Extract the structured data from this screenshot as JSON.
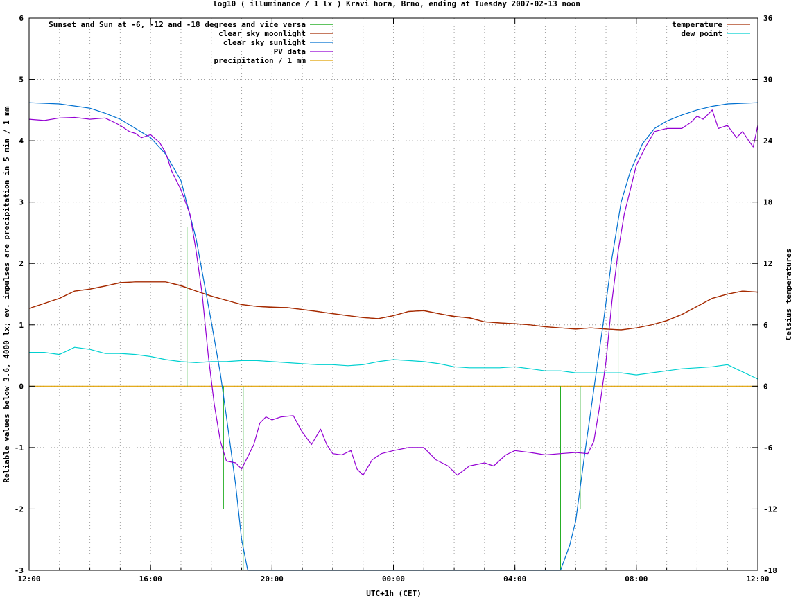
{
  "chart_data": {
    "type": "line",
    "title": "log10 ( illuminance / 1 lx ) Kravi hora, Brno, ending at Tuesday 2007-02-13 noon",
    "xlabel": "UTC+1h (CET)",
    "ylabel": "Reliable values below 3.6, 4000 lx; ev. impulses are precipitation in 5 min / 1 mm",
    "y2label": "Celsius temperatures",
    "x_unit": "hours elapsed since Monday 2007-02-12 12:00 (CET)",
    "xlim": [
      0,
      24
    ],
    "ylim": [
      -3,
      6
    ],
    "y2lim": [
      -18,
      36
    ],
    "grid": true,
    "legend_left_position": "top-left",
    "legend_right_position": "top-right",
    "x_ticks": [
      {
        "x": 0,
        "label": "12:00"
      },
      {
        "x": 4,
        "label": "16:00"
      },
      {
        "x": 8,
        "label": "20:00"
      },
      {
        "x": 12,
        "label": "00:00"
      },
      {
        "x": 16,
        "label": "04:00"
      },
      {
        "x": 20,
        "label": "08:00"
      },
      {
        "x": 24,
        "label": "12:00"
      }
    ],
    "y_ticks": [
      "-3",
      "-2",
      "-1",
      "0",
      "1",
      "2",
      "3",
      "4",
      "5",
      "6"
    ],
    "y2_ticks": [
      "-18",
      "-12",
      "-6",
      "0",
      "6",
      "12",
      "18",
      "24",
      "30",
      "36"
    ],
    "series": [
      {
        "name": "Sunset and Sun at -6, -12 and -18 degrees and vice versa",
        "axis": "y",
        "color": "#00a000",
        "kind": "impulse",
        "impulses": [
          {
            "x": 5.2,
            "y": 2.6
          },
          {
            "x": 6.4,
            "y": -2.0
          },
          {
            "x": 7.05,
            "y": -3.0
          },
          {
            "x": 17.5,
            "y": -3.0
          },
          {
            "x": 18.15,
            "y": -2.0
          },
          {
            "x": 19.4,
            "y": 2.6
          }
        ]
      },
      {
        "name": "clear sky moonlight",
        "axis": "y",
        "color": "#a52a00",
        "points": [
          [
            0,
            1.27
          ],
          [
            0.5,
            1.35
          ],
          [
            1,
            1.43
          ],
          [
            1.5,
            1.55
          ],
          [
            2,
            1.58
          ],
          [
            2.5,
            1.63
          ],
          [
            3,
            1.69
          ],
          [
            3.5,
            1.7
          ],
          [
            4,
            1.7
          ],
          [
            4.5,
            1.7
          ],
          [
            5,
            1.64
          ],
          [
            5.5,
            1.55
          ],
          [
            6,
            1.47
          ],
          [
            6.5,
            1.4
          ],
          [
            7,
            1.33
          ],
          [
            7.5,
            1.3
          ],
          [
            8,
            1.29
          ],
          [
            8.5,
            1.28
          ],
          [
            9,
            1.25
          ],
          [
            9.5,
            1.22
          ],
          [
            10,
            1.18
          ],
          [
            10.5,
            1.15
          ],
          [
            11,
            1.12
          ],
          [
            11.5,
            1.1
          ],
          [
            12,
            1.15
          ],
          [
            12.5,
            1.22
          ],
          [
            13,
            1.23
          ],
          [
            13.5,
            1.18
          ],
          [
            14,
            1.14
          ],
          [
            14.5,
            1.11
          ],
          [
            15,
            1.05
          ],
          [
            15.5,
            1.03
          ],
          [
            16,
            1.02
          ],
          [
            16.5,
            1.0
          ],
          [
            17,
            0.97
          ],
          [
            17.5,
            0.95
          ],
          [
            18,
            0.93
          ],
          [
            18.5,
            0.95
          ],
          [
            19,
            0.93
          ],
          [
            19.5,
            0.92
          ],
          [
            20,
            0.95
          ],
          [
            20.5,
            1.0
          ],
          [
            21,
            1.07
          ],
          [
            21.5,
            1.17
          ],
          [
            22,
            1.3
          ],
          [
            22.5,
            1.43
          ],
          [
            23,
            1.5
          ],
          [
            23.5,
            1.55
          ],
          [
            24,
            1.53
          ]
        ]
      },
      {
        "name": "clear sky sunlight",
        "axis": "y",
        "color": "#0070d0",
        "points": [
          [
            0,
            4.62
          ],
          [
            1,
            4.6
          ],
          [
            2,
            4.53
          ],
          [
            2.5,
            4.45
          ],
          [
            3,
            4.35
          ],
          [
            3.5,
            4.2
          ],
          [
            4,
            4.05
          ],
          [
            4.5,
            3.78
          ],
          [
            5,
            3.35
          ],
          [
            5.5,
            2.4
          ],
          [
            6,
            1.05
          ],
          [
            6.3,
            0.2
          ],
          [
            6.5,
            -0.5
          ],
          [
            6.8,
            -1.6
          ],
          [
            7.0,
            -2.5
          ],
          [
            7.2,
            -3.0
          ],
          [
            17.5,
            -3.0
          ],
          [
            17.8,
            -2.6
          ],
          [
            18.0,
            -2.2
          ],
          [
            18.3,
            -1.1
          ],
          [
            18.6,
            -0.05
          ],
          [
            18.9,
            1.0
          ],
          [
            19.2,
            2.1
          ],
          [
            19.5,
            3.0
          ],
          [
            19.8,
            3.5
          ],
          [
            20.2,
            3.95
          ],
          [
            20.6,
            4.2
          ],
          [
            21,
            4.32
          ],
          [
            21.5,
            4.42
          ],
          [
            22,
            4.5
          ],
          [
            22.5,
            4.56
          ],
          [
            23,
            4.6
          ],
          [
            24,
            4.62
          ]
        ]
      },
      {
        "name": "PV data",
        "axis": "y",
        "color": "#9400d3",
        "points": [
          [
            0,
            4.35
          ],
          [
            0.5,
            4.33
          ],
          [
            1,
            4.37
          ],
          [
            1.5,
            4.38
          ],
          [
            2,
            4.35
          ],
          [
            2.5,
            4.37
          ],
          [
            2.8,
            4.3
          ],
          [
            3,
            4.25
          ],
          [
            3.3,
            4.15
          ],
          [
            3.5,
            4.12
          ],
          [
            3.7,
            4.05
          ],
          [
            4,
            4.1
          ],
          [
            4.3,
            3.97
          ],
          [
            4.5,
            3.8
          ],
          [
            4.7,
            3.5
          ],
          [
            5,
            3.2
          ],
          [
            5.3,
            2.8
          ],
          [
            5.5,
            2.2
          ],
          [
            5.7,
            1.5
          ],
          [
            5.9,
            0.5
          ],
          [
            6.1,
            -0.3
          ],
          [
            6.3,
            -0.9
          ],
          [
            6.5,
            -1.22
          ],
          [
            6.8,
            -1.25
          ],
          [
            7,
            -1.35
          ],
          [
            7.2,
            -1.15
          ],
          [
            7.4,
            -0.95
          ],
          [
            7.6,
            -0.6
          ],
          [
            7.8,
            -0.5
          ],
          [
            8,
            -0.55
          ],
          [
            8.3,
            -0.5
          ],
          [
            8.7,
            -0.48
          ],
          [
            9,
            -0.75
          ],
          [
            9.3,
            -0.95
          ],
          [
            9.6,
            -0.7
          ],
          [
            9.8,
            -0.95
          ],
          [
            10,
            -1.1
          ],
          [
            10.3,
            -1.12
          ],
          [
            10.6,
            -1.05
          ],
          [
            10.8,
            -1.35
          ],
          [
            11,
            -1.45
          ],
          [
            11.3,
            -1.2
          ],
          [
            11.6,
            -1.1
          ],
          [
            12,
            -1.05
          ],
          [
            12.5,
            -1.0
          ],
          [
            13,
            -1.0
          ],
          [
            13.4,
            -1.2
          ],
          [
            13.8,
            -1.3
          ],
          [
            14.1,
            -1.45
          ],
          [
            14.5,
            -1.3
          ],
          [
            15,
            -1.25
          ],
          [
            15.3,
            -1.3
          ],
          [
            15.7,
            -1.12
          ],
          [
            16,
            -1.05
          ],
          [
            16.5,
            -1.08
          ],
          [
            17,
            -1.12
          ],
          [
            17.5,
            -1.1
          ],
          [
            18,
            -1.08
          ],
          [
            18.4,
            -1.1
          ],
          [
            18.6,
            -0.9
          ],
          [
            18.8,
            -0.3
          ],
          [
            19,
            0.4
          ],
          [
            19.2,
            1.4
          ],
          [
            19.4,
            2.2
          ],
          [
            19.6,
            2.8
          ],
          [
            19.8,
            3.2
          ],
          [
            20,
            3.6
          ],
          [
            20.3,
            3.9
          ],
          [
            20.6,
            4.15
          ],
          [
            21,
            4.2
          ],
          [
            21.5,
            4.2
          ],
          [
            21.8,
            4.3
          ],
          [
            22,
            4.4
          ],
          [
            22.2,
            4.35
          ],
          [
            22.5,
            4.5
          ],
          [
            22.7,
            4.2
          ],
          [
            23,
            4.25
          ],
          [
            23.3,
            4.05
          ],
          [
            23.5,
            4.15
          ],
          [
            23.7,
            4.0
          ],
          [
            23.85,
            3.9
          ],
          [
            24,
            4.25
          ]
        ]
      },
      {
        "name": "precipitation / 1 mm",
        "axis": "y",
        "color": "#e0a000",
        "points": [
          [
            0,
            0
          ],
          [
            24,
            0
          ]
        ]
      },
      {
        "name": "temperature",
        "axis": "y2",
        "color": "#a52a00",
        "points": [
          [
            0,
            7.6
          ],
          [
            0.5,
            8.1
          ],
          [
            1,
            8.6
          ],
          [
            1.5,
            9.3
          ],
          [
            2,
            9.5
          ],
          [
            2.5,
            9.8
          ],
          [
            3,
            10.1
          ],
          [
            3.5,
            10.2
          ],
          [
            4,
            10.2
          ],
          [
            4.5,
            10.2
          ],
          [
            5,
            9.8
          ],
          [
            5.5,
            9.3
          ],
          [
            6,
            8.8
          ],
          [
            6.5,
            8.4
          ],
          [
            7,
            8.0
          ],
          [
            7.5,
            7.8
          ],
          [
            8,
            7.7
          ],
          [
            8.5,
            7.7
          ],
          [
            9,
            7.5
          ],
          [
            9.5,
            7.3
          ],
          [
            10,
            7.1
          ],
          [
            10.5,
            6.9
          ],
          [
            11,
            6.7
          ],
          [
            11.5,
            6.6
          ],
          [
            12,
            6.9
          ],
          [
            12.5,
            7.3
          ],
          [
            13,
            7.4
          ],
          [
            13.5,
            7.1
          ],
          [
            14,
            6.8
          ],
          [
            14.5,
            6.7
          ],
          [
            15,
            6.3
          ],
          [
            15.5,
            6.2
          ],
          [
            16,
            6.1
          ],
          [
            16.5,
            6.0
          ],
          [
            17,
            5.8
          ],
          [
            17.5,
            5.7
          ],
          [
            18,
            5.6
          ],
          [
            18.5,
            5.7
          ],
          [
            19,
            5.6
          ],
          [
            19.5,
            5.5
          ],
          [
            20,
            5.7
          ],
          [
            20.5,
            6.0
          ],
          [
            21,
            6.4
          ],
          [
            21.5,
            7.0
          ],
          [
            22,
            7.8
          ],
          [
            22.5,
            8.6
          ],
          [
            23,
            9.0
          ],
          [
            23.5,
            9.3
          ],
          [
            24,
            9.2
          ]
        ]
      },
      {
        "name": "dew point",
        "axis": "y2",
        "color": "#00d0d0",
        "points": [
          [
            0,
            3.3
          ],
          [
            0.5,
            3.3
          ],
          [
            1,
            3.1
          ],
          [
            1.5,
            3.8
          ],
          [
            2,
            3.6
          ],
          [
            2.5,
            3.2
          ],
          [
            3,
            3.2
          ],
          [
            3.5,
            3.1
          ],
          [
            4,
            2.9
          ],
          [
            4.5,
            2.6
          ],
          [
            5,
            2.4
          ],
          [
            5.5,
            2.3
          ],
          [
            6,
            2.4
          ],
          [
            6.5,
            2.4
          ],
          [
            7,
            2.5
          ],
          [
            7.5,
            2.5
          ],
          [
            8,
            2.4
          ],
          [
            8.5,
            2.3
          ],
          [
            9,
            2.2
          ],
          [
            9.5,
            2.1
          ],
          [
            10,
            2.1
          ],
          [
            10.5,
            2.0
          ],
          [
            11,
            2.1
          ],
          [
            11.5,
            2.4
          ],
          [
            12,
            2.6
          ],
          [
            12.5,
            2.5
          ],
          [
            13,
            2.4
          ],
          [
            13.5,
            2.2
          ],
          [
            14,
            1.9
          ],
          [
            14.5,
            1.8
          ],
          [
            15,
            1.8
          ],
          [
            15.5,
            1.8
          ],
          [
            16,
            1.9
          ],
          [
            16.5,
            1.7
          ],
          [
            17,
            1.5
          ],
          [
            17.5,
            1.5
          ],
          [
            18,
            1.3
          ],
          [
            18.5,
            1.3
          ],
          [
            19,
            1.3
          ],
          [
            19.5,
            1.3
          ],
          [
            20,
            1.1
          ],
          [
            20.5,
            1.3
          ],
          [
            21,
            1.5
          ],
          [
            21.5,
            1.7
          ],
          [
            22,
            1.8
          ],
          [
            22.5,
            1.9
          ],
          [
            23,
            2.1
          ],
          [
            23.5,
            1.4
          ],
          [
            24,
            0.7
          ]
        ]
      }
    ]
  }
}
